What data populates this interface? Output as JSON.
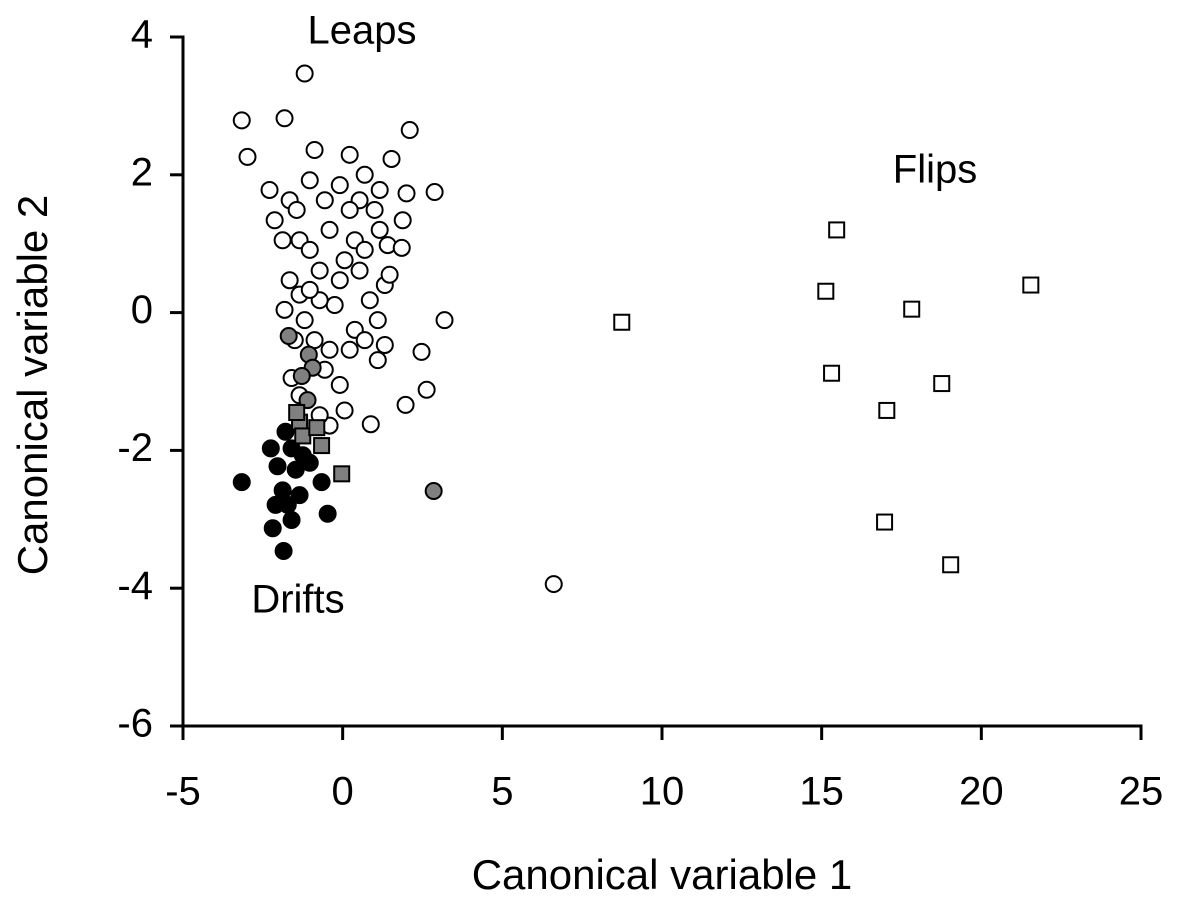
{
  "chart_data": {
    "type": "scatter",
    "x_label": "Canonical variable 1",
    "y_label": "Canonical variable 2",
    "annotations": [
      "Leaps",
      "Flips",
      "Drifts"
    ],
    "xlim": [
      -5,
      25
    ],
    "xticks": [
      -5,
      0,
      5,
      10,
      15,
      20,
      25
    ],
    "ylim": [
      -6,
      4
    ],
    "yticks": [
      -6,
      -4,
      -2,
      0,
      2,
      4
    ],
    "series": [
      {
        "color": "#ffffff",
        "marker": "circle",
        "x": [
          -1.19,
          -3.16,
          -1.82,
          -2.98,
          2.1,
          2.88,
          3.19,
          2.47,
          2.63,
          1.97,
          0.88,
          6.61,
          -0.88,
          0.22,
          1.53,
          -2.29,
          -1.66,
          2.0,
          -2.13,
          1.88,
          -1.88,
          -1.35,
          1.41,
          1.85,
          -1.66,
          -1.35,
          -1.82,
          1.32,
          1.47,
          1.1,
          1.32,
          1.1,
          -1.5,
          -1.6,
          -1.35,
          -0.56,
          -0.09,
          0.06,
          -0.41,
          -0.72,
          0.38,
          -0.25,
          0.06,
          -0.72,
          -0.41,
          0.53,
          -0.09,
          -1.03,
          0.69,
          1.0,
          0.38,
          -1.03,
          0.53,
          0.85,
          -0.72,
          -1.19,
          0.22,
          0.69,
          -0.88,
          -0.41,
          -1.03,
          -0.09,
          0.22,
          -0.56,
          1.16,
          1.16,
          -1.44,
          0.69
        ],
        "values": [
          3.47,
          2.79,
          2.82,
          2.26,
          2.65,
          1.75,
          -0.11,
          -0.57,
          -1.12,
          -1.34,
          -1.62,
          -3.94,
          2.36,
          2.29,
          2.23,
          1.78,
          1.63,
          1.73,
          1.34,
          1.34,
          1.05,
          1.05,
          0.98,
          0.94,
          0.47,
          0.26,
          0.04,
          0.4,
          0.55,
          -0.11,
          -0.47,
          -0.69,
          -0.4,
          -0.95,
          -1.2,
          -0.83,
          -1.05,
          -1.42,
          -1.64,
          -1.49,
          -0.25,
          0.11,
          0.76,
          0.61,
          1.2,
          1.63,
          1.85,
          1.92,
          2.0,
          1.49,
          1.05,
          0.91,
          0.61,
          0.18,
          0.18,
          -0.11,
          -0.54,
          -0.4,
          -0.4,
          -0.54,
          0.33,
          0.47,
          1.49,
          1.63,
          1.78,
          1.2,
          1.49,
          0.91
        ]
      },
      {
        "color": "#000000",
        "marker": "circle",
        "x": [
          -2.25,
          -1.79,
          -3.16,
          -2.1,
          -2.19,
          -1.85,
          -1.6,
          -1.47,
          -1.88,
          -1.03,
          -1.35,
          -0.66,
          -0.47,
          -1.6,
          -1.25,
          -1.72,
          -2.04
        ],
        "values": [
          -1.97,
          -1.73,
          -2.46,
          -2.79,
          -3.13,
          -3.46,
          -3.01,
          -2.28,
          -2.58,
          -2.18,
          -2.65,
          -2.46,
          -2.92,
          -1.97,
          -2.07,
          -2.79,
          -2.23
        ]
      },
      {
        "color": "#808080",
        "marker": "circle",
        "x": [
          -1.69,
          -1.06,
          -0.94,
          -1.28,
          -1.1,
          2.85
        ],
        "values": [
          -0.34,
          -0.61,
          -0.8,
          -0.92,
          -1.27,
          -2.59
        ]
      },
      {
        "color": "#808080",
        "marker": "square",
        "x": [
          -1.35,
          -1.25,
          -0.81,
          -0.66,
          -0.03,
          -1.44
        ],
        "values": [
          -1.59,
          -1.79,
          -1.67,
          -1.93,
          -2.34,
          -1.45
        ]
      },
      {
        "color": "#ffffff",
        "marker": "square",
        "x": [
          8.74,
          15.47,
          15.13,
          21.55,
          17.82,
          15.31,
          18.76,
          17.04,
          16.97,
          19.04
        ],
        "values": [
          -0.14,
          1.2,
          0.31,
          0.4,
          0.05,
          -0.88,
          -1.03,
          -1.42,
          -3.04,
          -3.66
        ]
      }
    ]
  }
}
